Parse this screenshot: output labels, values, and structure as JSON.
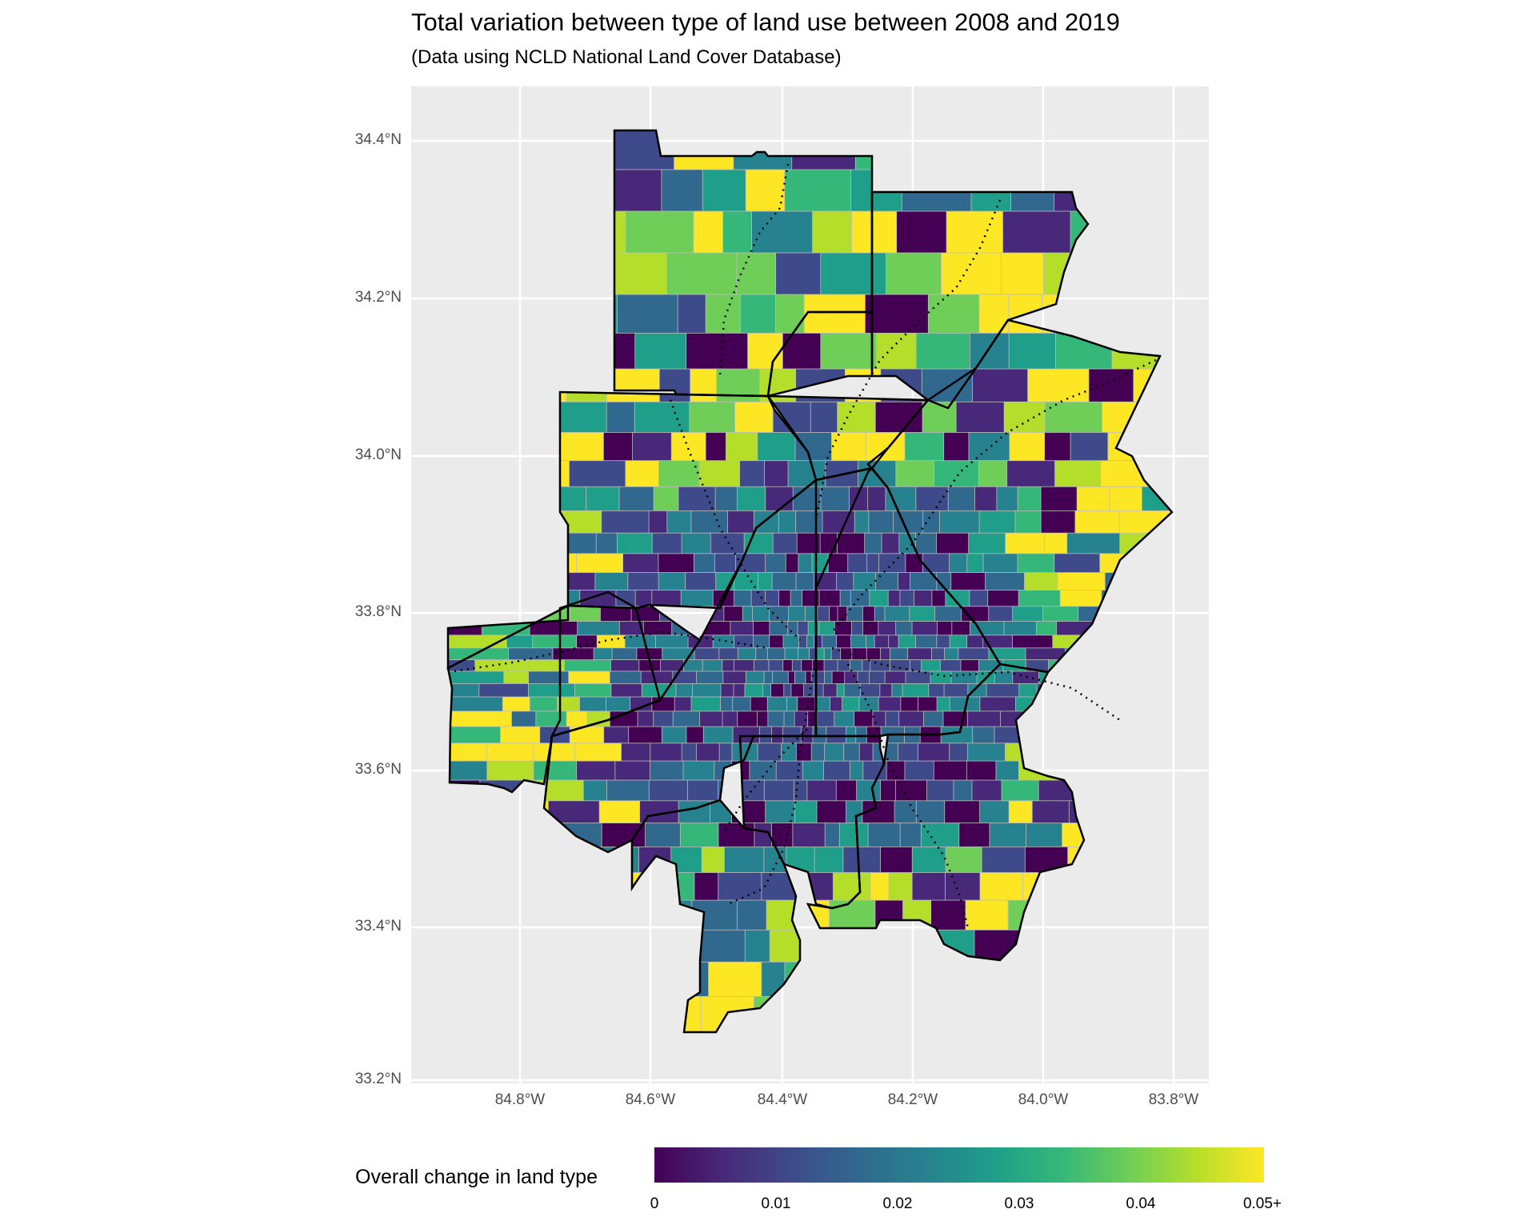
{
  "title": "Total variation between type of land use between 2008 and 2019",
  "subtitle": "(Data using NCLD National Land Cover Database)",
  "axes": {
    "y_ticks": [
      "34.4°N",
      "34.2°N",
      "34.0°N",
      "33.8°N",
      "33.6°N",
      "33.4°N",
      "33.2°N"
    ],
    "x_ticks": [
      "84.8°W",
      "84.6°W",
      "84.4°W",
      "84.2°W",
      "84.0°W",
      "83.8°W"
    ],
    "lat_range": [
      33.2,
      34.45
    ],
    "lon_range": [
      -84.98,
      -83.75
    ]
  },
  "legend": {
    "title": "Overall change in land type",
    "tick_labels": [
      "0",
      "0.01",
      "0.02",
      "0.03",
      "0.04",
      "0.05+"
    ],
    "palette": "viridis",
    "colors": [
      "#440154",
      "#482878",
      "#3e4a89",
      "#31688e",
      "#26828e",
      "#1f9e89",
      "#35b779",
      "#6ece58",
      "#b5de2b",
      "#fde725"
    ]
  },
  "colors": {
    "panel_background": "#ebebeb",
    "gridline": "#ffffff",
    "county_border": "#000000",
    "tract_border": "#bdbdbd"
  }
}
